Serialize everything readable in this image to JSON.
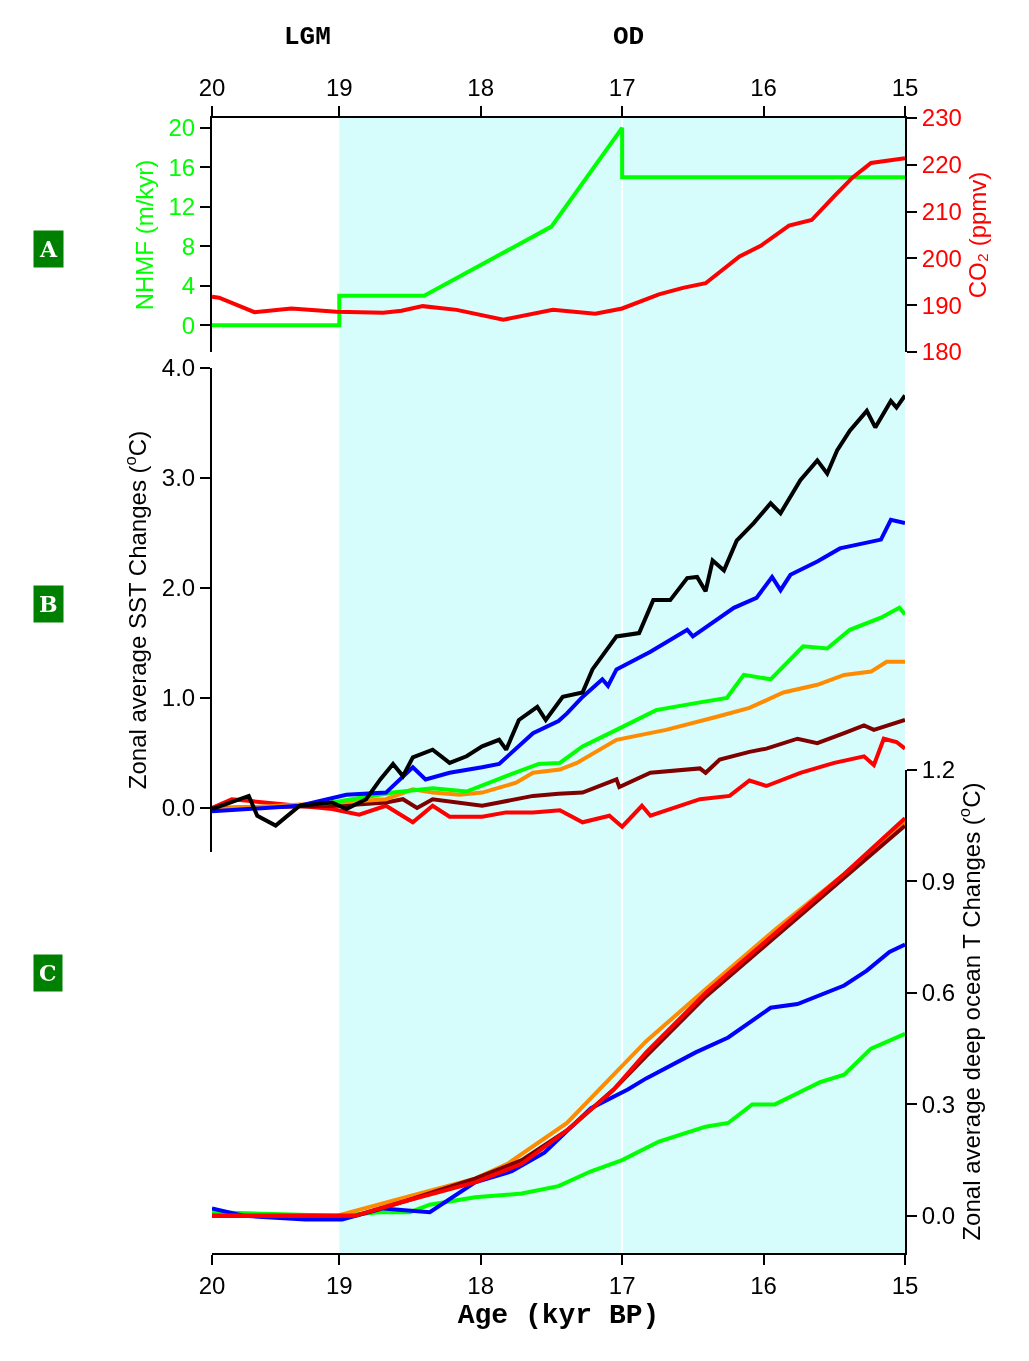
{
  "chart_data": [
    {
      "type": "line",
      "ylabel": "NHMF (m/kyr)",
      "y2label": "CO₂ (ppmv)",
      "annotations": [
        "LGM",
        "OD",
        "A"
      ],
      "xlim": [
        19.9,
        15
      ],
      "xticks": [
        {
          "value": 19.9,
          "label": "20"
        },
        19,
        18,
        17,
        16,
        15
      ],
      "ylim": [
        -2.7,
        21
      ],
      "yticks": [
        0,
        4,
        8,
        12,
        16,
        20
      ],
      "y2lim": [
        180,
        230
      ],
      "y2ticks": [
        180,
        190,
        200,
        210,
        220,
        230
      ],
      "bands": [
        {
          "axis": "x",
          "from": 19,
          "to": 15,
          "color": "#d6fcfc"
        }
      ],
      "ref_lines": [
        {
          "axis": "x",
          "value": 17,
          "color": "#ffffff"
        }
      ],
      "series": [
        {
          "color": "#00ff00",
          "x": [
            19.9,
            19.0,
            19.0,
            18.4,
            17.5,
            17.0,
            17.0,
            15.0
          ],
          "values": [
            0,
            0,
            3,
            3,
            10,
            20,
            15,
            15
          ]
        },
        {
          "color": "#ff0000",
          "axis": "y2",
          "x": [
            19.9,
            19.85,
            19.6,
            19.34,
            19.02,
            18.69,
            18.56,
            18.41,
            18.17,
            17.84,
            17.49,
            17.19,
            17.0,
            16.74,
            16.57,
            16.41,
            16.17,
            16.02,
            15.82,
            15.66,
            15.5,
            15.37,
            15.24,
            15.0
          ],
          "values": [
            191.8,
            191.6,
            188.5,
            189.3,
            188.6,
            188.4,
            188.8,
            189.8,
            189.0,
            186.9,
            189.0,
            188.2,
            189.3,
            192.3,
            193.7,
            194.7,
            200.4,
            202.7,
            207.0,
            208.2,
            213.3,
            217.3,
            220.4,
            221.4
          ]
        }
      ]
    },
    {
      "type": "line",
      "ylabel": "Zonal average SST Changes ($^{o}$C)",
      "annotations": [
        "B"
      ],
      "tick_labels": "y",
      "xlim": [
        19.9,
        15
      ],
      "ylim": [
        -0.4,
        4.0
      ],
      "yticks": [
        {
          "value": 0,
          "label": "0.0"
        },
        {
          "value": 1,
          "label": "1.0"
        },
        {
          "value": 2,
          "label": "2.0"
        },
        {
          "value": 3,
          "label": "3.0"
        },
        {
          "value": 4,
          "label": "4.0"
        }
      ],
      "bands": [
        {
          "axis": "x",
          "from": 19,
          "to": 15,
          "color": "#d6fcfc"
        }
      ],
      "ref_lines": [
        {
          "axis": "x",
          "value": 17,
          "color": "#ffffff"
        }
      ],
      "series": [
        {
          "color": "#ff0000",
          "x": [
            19.9,
            19.76,
            19.05,
            18.86,
            18.67,
            18.48,
            18.34,
            18.22,
            17.99,
            17.82,
            17.63,
            17.44,
            17.28,
            17.09,
            17.0,
            16.86,
            16.8,
            16.45,
            16.24,
            16.1,
            15.98,
            15.74,
            15.5,
            15.29,
            15.22,
            15.15,
            15.06,
            15.0
          ],
          "values": [
            0.0,
            0.08,
            -0.01,
            -0.06,
            0.02,
            -0.13,
            0.02,
            -0.08,
            -0.08,
            -0.04,
            -0.04,
            -0.02,
            -0.13,
            -0.07,
            -0.17,
            0.02,
            -0.07,
            0.08,
            0.11,
            0.25,
            0.2,
            0.32,
            0.41,
            0.47,
            0.39,
            0.63,
            0.6,
            0.54
          ]
        },
        {
          "color": "#800000",
          "x": [
            19.9,
            19.0,
            18.67,
            18.55,
            18.45,
            18.34,
            17.99,
            17.87,
            17.63,
            17.45,
            17.28,
            17.04,
            17.02,
            16.8,
            16.45,
            16.41,
            16.31,
            16.1,
            15.98,
            15.76,
            15.62,
            15.43,
            15.29,
            15.22,
            15.0
          ],
          "values": [
            0.0,
            0.02,
            0.05,
            0.08,
            0.0,
            0.08,
            0.02,
            0.05,
            0.11,
            0.13,
            0.14,
            0.26,
            0.19,
            0.32,
            0.36,
            0.32,
            0.44,
            0.51,
            0.54,
            0.63,
            0.59,
            0.68,
            0.75,
            0.71,
            0.8
          ]
        },
        {
          "color": "#ff8c00",
          "x": [
            19.9,
            19.0,
            18.67,
            18.48,
            18.34,
            18.15,
            17.99,
            17.75,
            17.63,
            17.44,
            17.32,
            17.04,
            16.69,
            16.33,
            16.1,
            15.86,
            15.62,
            15.43,
            15.24,
            15.13,
            15.0
          ],
          "values": [
            -0.01,
            0.05,
            0.08,
            0.17,
            0.14,
            0.12,
            0.14,
            0.23,
            0.32,
            0.35,
            0.41,
            0.62,
            0.71,
            0.83,
            0.91,
            1.05,
            1.12,
            1.21,
            1.24,
            1.33,
            1.33
          ]
        },
        {
          "color": "#00ff00",
          "x": [
            19.05,
            18.62,
            18.34,
            18.1,
            17.82,
            17.59,
            17.44,
            17.28,
            17.04,
            16.76,
            16.45,
            16.26,
            16.14,
            15.95,
            15.72,
            15.55,
            15.39,
            15.17,
            15.04,
            15.0
          ],
          "values": [
            0.05,
            0.14,
            0.18,
            0.15,
            0.29,
            0.4,
            0.41,
            0.56,
            0.71,
            0.89,
            0.96,
            1.0,
            1.21,
            1.17,
            1.47,
            1.45,
            1.62,
            1.73,
            1.82,
            1.76
          ]
        },
        {
          "color": "#0000ff",
          "x": [
            19.9,
            19.28,
            18.95,
            18.67,
            18.48,
            18.39,
            18.22,
            17.99,
            17.87,
            17.63,
            17.45,
            17.39,
            17.28,
            17.14,
            17.1,
            17.04,
            16.8,
            16.54,
            16.5,
            16.21,
            16.05,
            15.94,
            15.88,
            15.81,
            15.62,
            15.46,
            15.17,
            15.1,
            15.0
          ],
          "values": [
            -0.03,
            0.02,
            0.12,
            0.14,
            0.37,
            0.26,
            0.32,
            0.37,
            0.4,
            0.68,
            0.79,
            0.86,
            1.01,
            1.17,
            1.11,
            1.26,
            1.42,
            1.62,
            1.56,
            1.82,
            1.91,
            2.1,
            1.98,
            2.12,
            2.24,
            2.36,
            2.44,
            2.62,
            2.59
          ]
        },
        {
          "color": "#000000",
          "x": [
            19.9,
            19.64,
            19.58,
            19.45,
            19.28,
            19.05,
            18.95,
            18.81,
            18.71,
            18.62,
            18.55,
            18.48,
            18.34,
            18.22,
            18.1,
            17.99,
            17.87,
            17.82,
            17.73,
            17.6,
            17.54,
            17.42,
            17.28,
            17.21,
            17.04,
            16.88,
            16.78,
            16.66,
            16.54,
            16.47,
            16.41,
            16.36,
            16.28,
            16.19,
            16.07,
            15.95,
            15.88,
            15.74,
            15.62,
            15.55,
            15.48,
            15.39,
            15.27,
            15.21,
            15.1,
            15.06,
            15.0
          ],
          "values": [
            -0.01,
            0.11,
            -0.07,
            -0.16,
            0.02,
            0.05,
            -0.01,
            0.08,
            0.26,
            0.4,
            0.29,
            0.46,
            0.53,
            0.41,
            0.47,
            0.56,
            0.62,
            0.53,
            0.8,
            0.92,
            0.8,
            1.01,
            1.05,
            1.26,
            1.56,
            1.59,
            1.89,
            1.89,
            2.09,
            2.1,
            1.97,
            2.25,
            2.16,
            2.43,
            2.59,
            2.77,
            2.68,
            2.98,
            3.16,
            3.04,
            3.25,
            3.43,
            3.61,
            3.46,
            3.7,
            3.64,
            3.75
          ]
        }
      ]
    },
    {
      "type": "line",
      "xlabel": "Age (kyr BP)",
      "y2label": "Zonal average deep ocean T Changes ($^{o}$C)",
      "annotations": [
        "C"
      ],
      "xlim": [
        19.9,
        15
      ],
      "xticks": [
        {
          "value": 19.9,
          "label": "20"
        },
        19,
        18,
        17,
        16,
        15
      ],
      "y2lim": [
        -0.1,
        1.2
      ],
      "y2ticks": [
        {
          "value": 0,
          "label": "0.0"
        },
        {
          "value": 0.3,
          "label": "0.3"
        },
        {
          "value": 0.6,
          "label": "0.6"
        },
        {
          "value": 0.9,
          "label": "0.9"
        },
        {
          "value": 1.2,
          "label": "1.2"
        }
      ],
      "bands": [
        {
          "axis": "x",
          "from": 19,
          "to": 15,
          "color": "#d6fcfc"
        }
      ],
      "ref_lines": [
        {
          "axis": "x",
          "value": 17,
          "color": "#ffffff"
        }
      ],
      "series": [
        {
          "color": "#00ff00",
          "axis": "y2",
          "x": [
            19.9,
            19.02,
            18.69,
            18.5,
            18.36,
            18.04,
            17.71,
            17.45,
            17.22,
            17.0,
            16.74,
            16.41,
            16.25,
            16.08,
            15.92,
            15.76,
            15.6,
            15.43,
            15.24,
            15.0
          ],
          "values": [
            0.01,
            0,
            0.01,
            0.01,
            0.03,
            0.05,
            0.06,
            0.08,
            0.12,
            0.15,
            0.2,
            0.24,
            0.25,
            0.3,
            0.3,
            0.33,
            0.36,
            0.38,
            0.45,
            0.49
          ]
        },
        {
          "color": "#0000ff",
          "axis": "y2",
          "x": [
            19.9,
            19.67,
            19.24,
            18.98,
            18.69,
            18.36,
            18.04,
            17.78,
            17.55,
            17.22,
            16.96,
            16.83,
            16.48,
            16.25,
            15.95,
            15.76,
            15.43,
            15.27,
            15.11,
            15.0
          ],
          "values": [
            0.02,
            0.0,
            -0.01,
            -0.01,
            0.02,
            0.01,
            0.09,
            0.12,
            0.17,
            0.29,
            0.34,
            0.37,
            0.44,
            0.48,
            0.56,
            0.57,
            0.62,
            0.66,
            0.71,
            0.73
          ]
        },
        {
          "color": "#ff8c00",
          "axis": "y2",
          "x": [
            19.9,
            19.02,
            18.53,
            18.04,
            17.81,
            17.39,
            17.06,
            16.83,
            16.41,
            15.92,
            15.43,
            15.0
          ],
          "values": [
            0,
            0,
            0.05,
            0.1,
            0.14,
            0.25,
            0.38,
            0.47,
            0.61,
            0.77,
            0.92,
            1.06
          ]
        },
        {
          "color": "#800000",
          "axis": "y2",
          "x": [
            19.9,
            19.02,
            18.89,
            18.53,
            18.04,
            17.71,
            17.39,
            17.06,
            16.83,
            16.41,
            15.92,
            15.43,
            15.0
          ],
          "values": [
            0,
            0,
            0,
            0.04,
            0.1,
            0.15,
            0.23,
            0.34,
            0.43,
            0.59,
            0.75,
            0.91,
            1.05
          ]
        },
        {
          "color": "#ff0000",
          "axis": "y2",
          "x": [
            19.9,
            19.02,
            18.89,
            18.53,
            18.04,
            17.71,
            17.39,
            17.06,
            16.83,
            16.41,
            15.92,
            15.43,
            15.0
          ],
          "values": [
            0,
            0,
            0,
            0.04,
            0.09,
            0.14,
            0.23,
            0.34,
            0.44,
            0.6,
            0.76,
            0.92,
            1.07
          ]
        }
      ]
    }
  ]
}
